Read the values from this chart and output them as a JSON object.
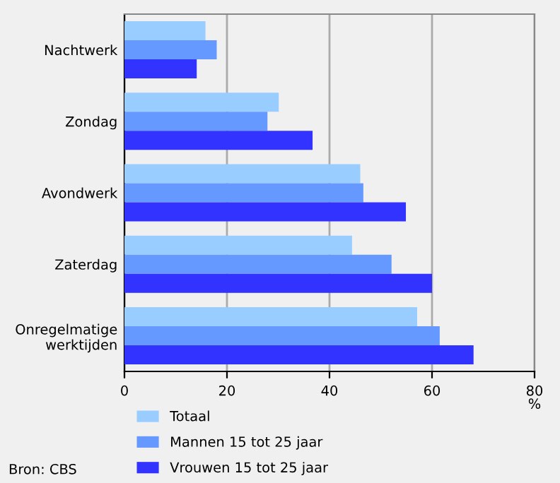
{
  "chart_data": {
    "type": "bar",
    "orientation": "horizontal",
    "categories": [
      "Nachtwerk",
      "Zondag",
      "Avondwerk",
      "Zaterdag",
      "Onregelmatige\nwerktijden"
    ],
    "series": [
      {
        "name": "Totaal",
        "color": "#99ccff",
        "values": [
          15.8,
          30.1,
          46.0,
          44.4,
          57.1
        ]
      },
      {
        "name": "Mannen 15 tot 25 jaar",
        "color": "#6699ff",
        "values": [
          18.0,
          27.9,
          46.6,
          52.1,
          61.5
        ]
      },
      {
        "name": "Vrouwen 15 tot 25 jaar",
        "color": "#3333ff",
        "values": [
          14.1,
          36.7,
          54.9,
          60.0,
          68.1
        ]
      }
    ],
    "xlim": [
      0,
      80
    ],
    "xticks": [
      0,
      20,
      40,
      60,
      80
    ],
    "xlabel": "%",
    "grid": "x",
    "legend": "bottom",
    "annotations": [
      "Bron: CBS"
    ]
  }
}
